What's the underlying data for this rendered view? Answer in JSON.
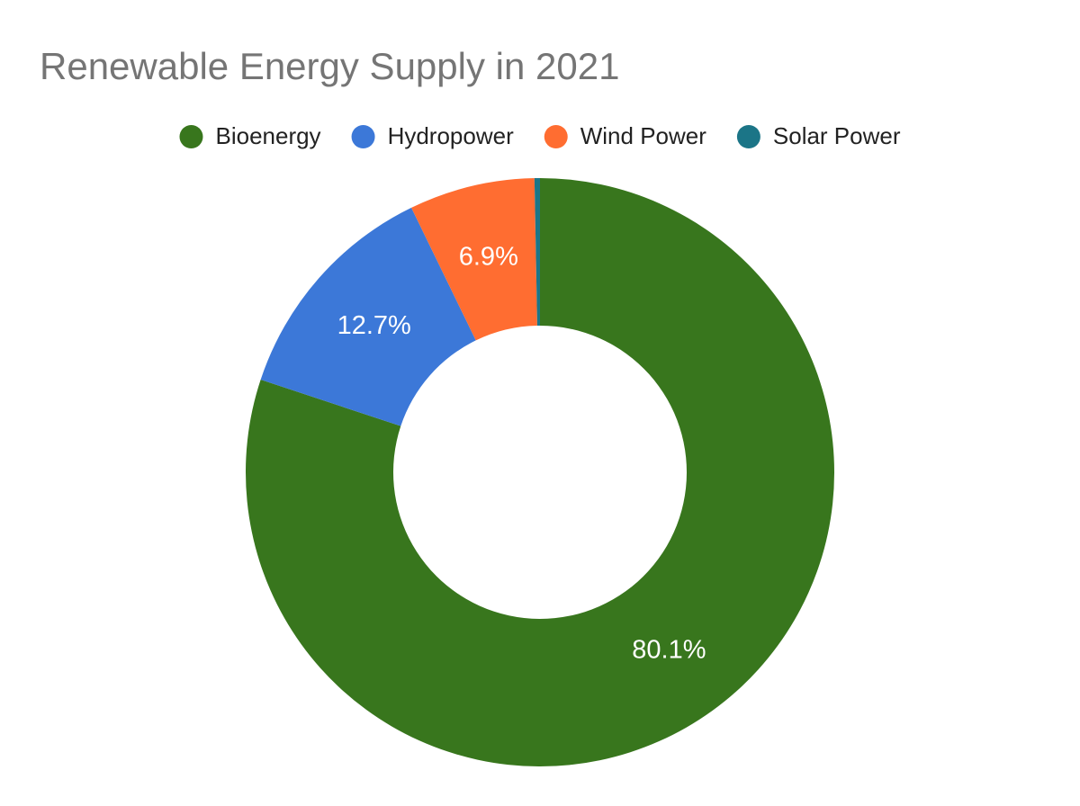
{
  "chart_data": {
    "type": "donut",
    "title": "Renewable Energy Supply in 2021",
    "categories": [
      "Bioenergy",
      "Hydropower",
      "Wind Power",
      "Solar Power"
    ],
    "values": [
      80.1,
      12.7,
      6.9,
      0.3
    ],
    "value_labels": [
      "80.1%",
      "12.7%",
      "6.9%",
      null
    ],
    "colors": [
      "#38761d",
      "#3c78d8",
      "#ff6d31",
      "#1b7587"
    ],
    "legend": "top"
  }
}
